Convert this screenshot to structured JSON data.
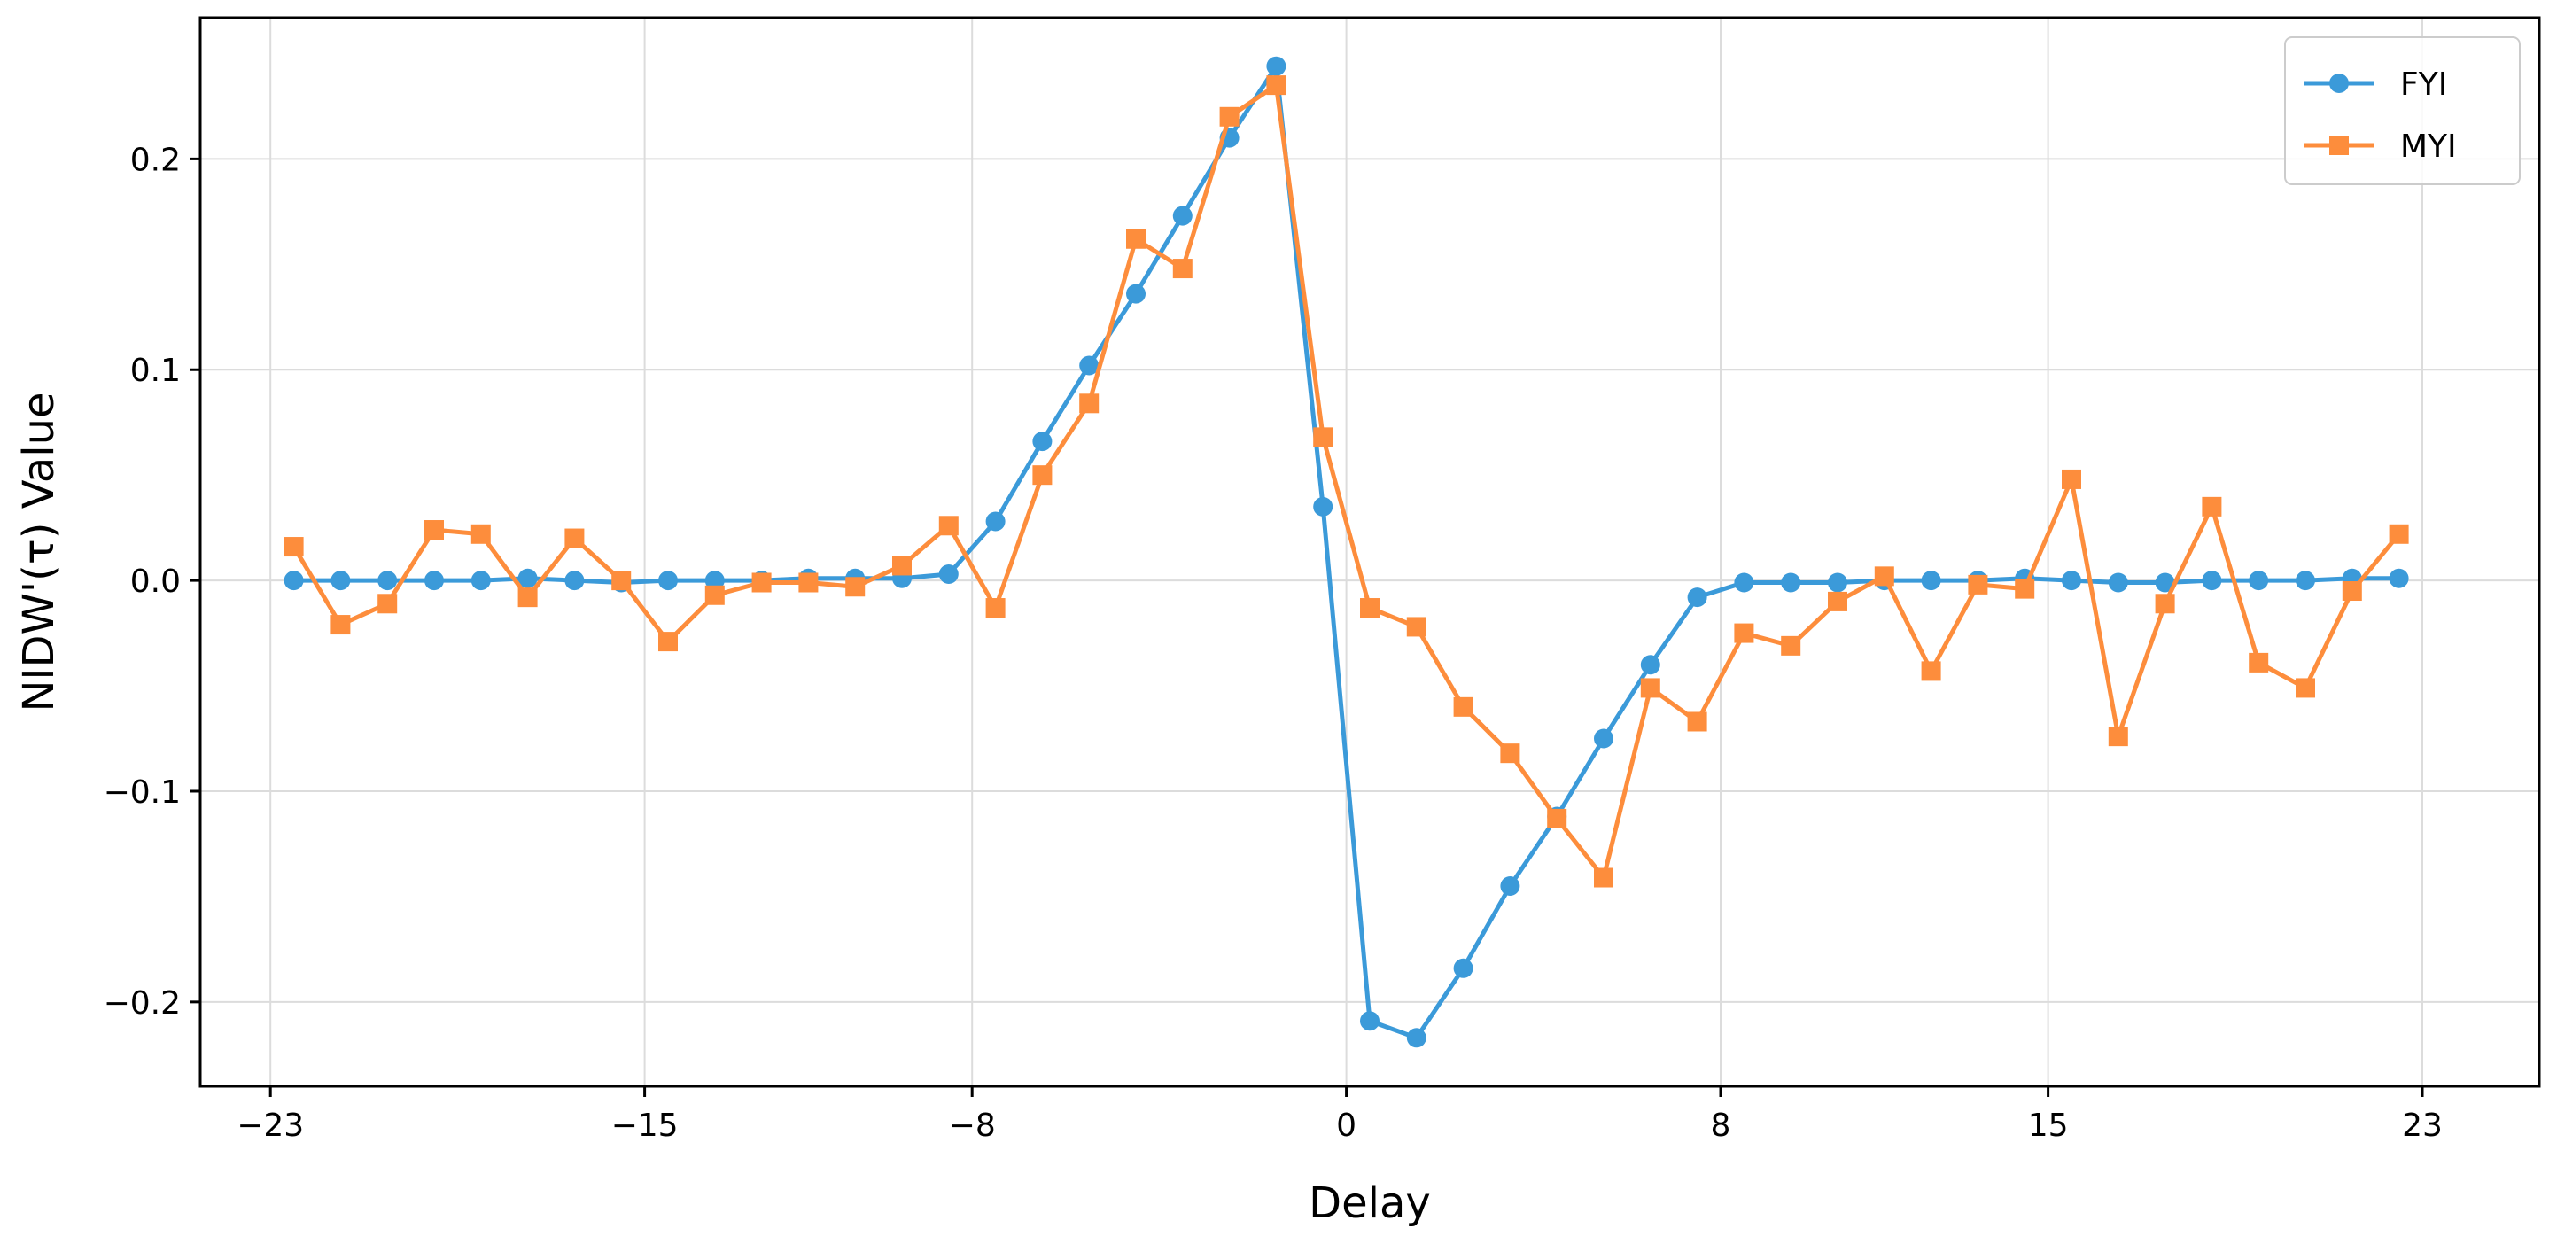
{
  "chart_data": {
    "type": "line",
    "xlabel": "Delay",
    "ylabel": "NIDW'(τ) Value",
    "xlim": [
      -24.5,
      25.5
    ],
    "ylim": [
      -0.24,
      0.267
    ],
    "xticks": [
      -23,
      -15,
      -8,
      0,
      8,
      15,
      23
    ],
    "xtick_labels": [
      "−23",
      "−15",
      "−8",
      "0",
      "8",
      "15",
      "23"
    ],
    "yticks": [
      -0.2,
      -0.1,
      0.0,
      0.1,
      0.2
    ],
    "ytick_labels": [
      "−0.2",
      "−0.1",
      "0.0",
      "0.1",
      "0.2"
    ],
    "grid": true,
    "legend_position": "top-right",
    "x": [
      -22.5,
      -21.5,
      -20.5,
      -19.5,
      -18.5,
      -17.5,
      -16.5,
      -15.5,
      -14.5,
      -13.5,
      -12.5,
      -11.5,
      -10.5,
      -9.5,
      -8.5,
      -7.5,
      -6.5,
      -5.5,
      -4.5,
      -3.5,
      -2.5,
      -1.5,
      -0.5,
      0.5,
      1.5,
      2.5,
      3.5,
      4.5,
      5.5,
      6.5,
      7.5,
      8.5,
      9.5,
      10.5,
      11.5,
      12.5,
      13.5,
      14.5,
      15.5,
      16.5,
      17.5,
      18.5,
      19.5,
      20.5,
      21.5,
      22.5
    ],
    "series": [
      {
        "name": "FYI",
        "color": "#3b9ad9",
        "marker": "circle",
        "values": [
          0.0,
          0.0,
          0.0,
          0.0,
          0.0,
          0.001,
          0.0,
          -0.001,
          0.0,
          0.0,
          0.0,
          0.001,
          0.001,
          0.001,
          0.003,
          0.028,
          0.066,
          0.102,
          0.136,
          0.173,
          0.21,
          0.244,
          0.035,
          -0.209,
          -0.217,
          -0.184,
          -0.145,
          -0.112,
          -0.075,
          -0.04,
          -0.008,
          -0.001,
          -0.001,
          -0.001,
          0.0,
          0.0,
          0.0,
          0.001,
          0.0,
          -0.001,
          -0.001,
          0.0,
          0.0,
          0.0,
          0.001,
          0.001
        ]
      },
      {
        "name": "MYI",
        "color": "#fd8d3c",
        "marker": "square",
        "values": [
          0.016,
          -0.021,
          -0.011,
          0.024,
          0.022,
          -0.008,
          0.02,
          0.0,
          -0.029,
          -0.007,
          -0.001,
          -0.001,
          -0.003,
          0.007,
          0.026,
          -0.013,
          0.05,
          0.084,
          0.162,
          0.148,
          0.22,
          0.235,
          0.068,
          -0.013,
          -0.022,
          -0.06,
          -0.082,
          -0.113,
          -0.141,
          -0.051,
          -0.067,
          -0.025,
          -0.031,
          -0.01,
          0.002,
          -0.043,
          -0.002,
          -0.004,
          0.048,
          -0.074,
          -0.011,
          0.035,
          -0.039,
          -0.051,
          -0.005,
          0.022
        ]
      }
    ]
  }
}
